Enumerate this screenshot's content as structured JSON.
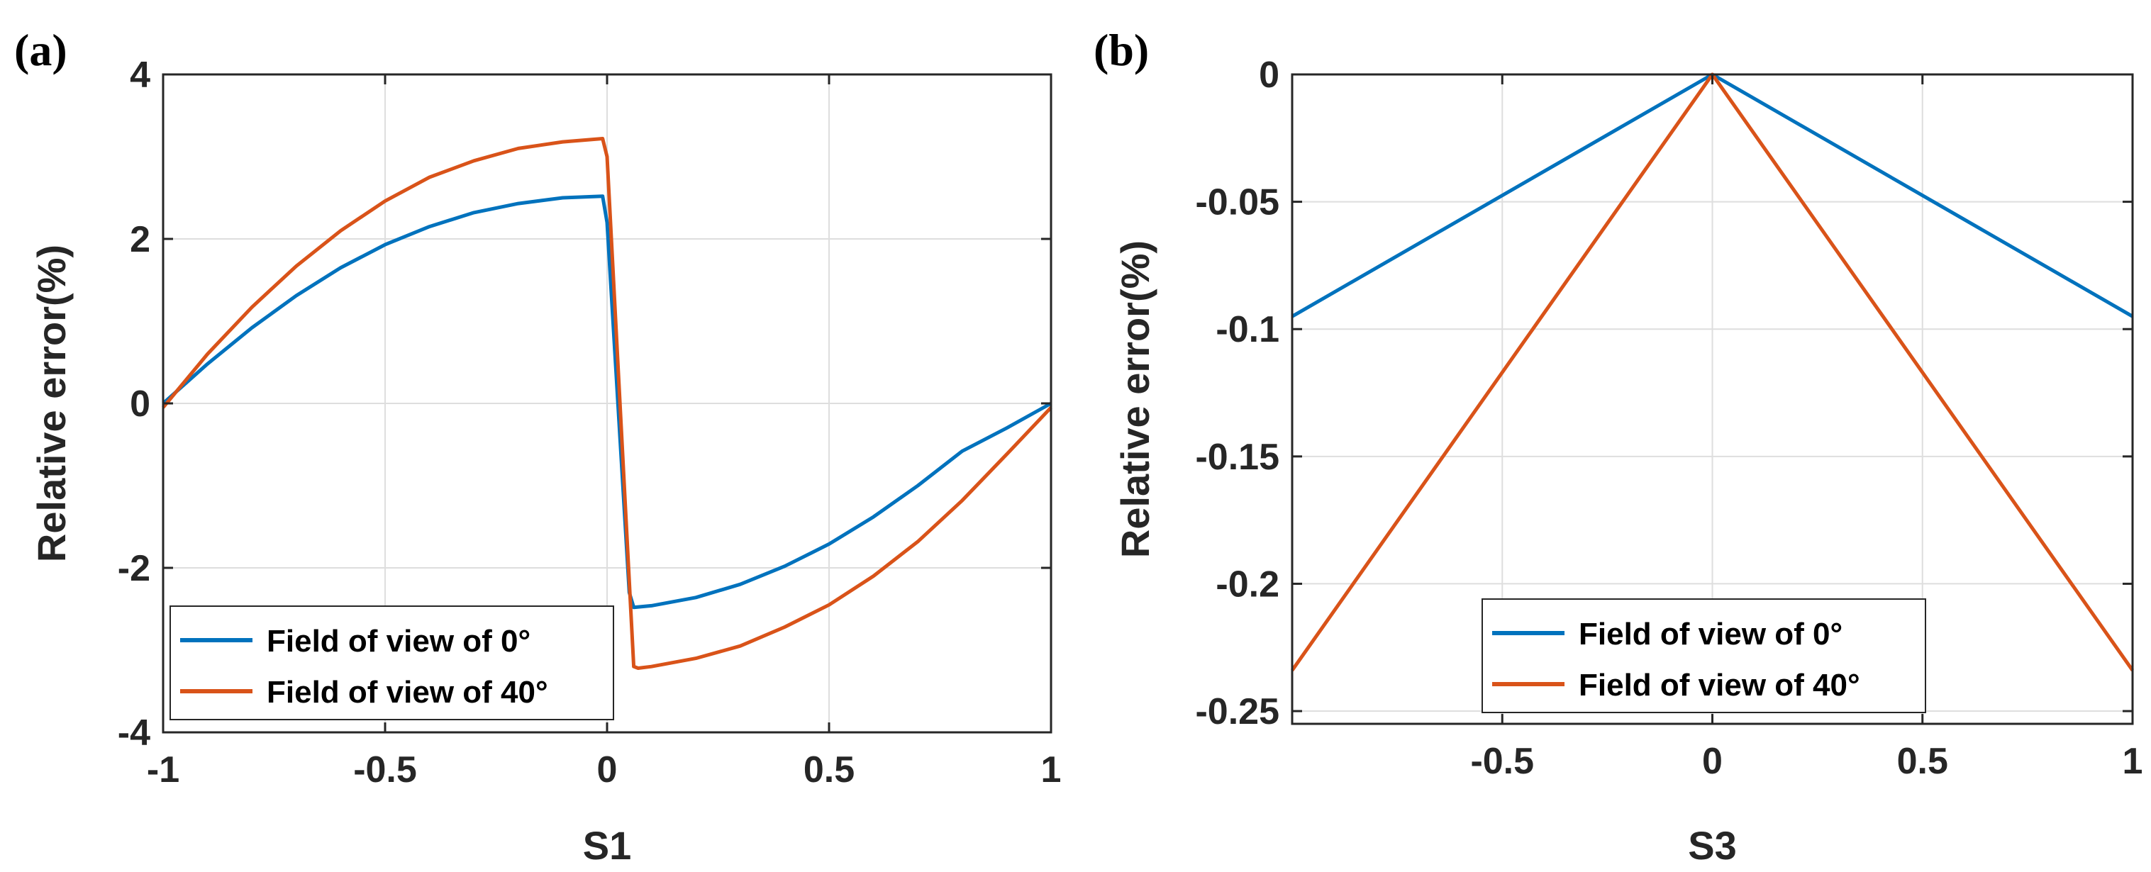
{
  "chart_data": [
    {
      "type": "line",
      "panel_label": "(a)",
      "xlabel": "S1",
      "ylabel": "Relative error(%)",
      "xlim": [
        -1,
        1
      ],
      "ylim": [
        -4,
        4
      ],
      "xticks": [
        -1,
        -0.5,
        0,
        0.5,
        1
      ],
      "xtick_labels": [
        "-1",
        "-0.5",
        "0",
        "0.5",
        "1"
      ],
      "yticks": [
        -4,
        -2,
        0,
        2,
        4
      ],
      "ytick_labels": [
        "-4",
        "-2",
        "0",
        "2",
        "4"
      ],
      "grid": true,
      "legend_position": "bottom-left",
      "series": [
        {
          "name": "Field of view of 0°",
          "color": "#0072BD",
          "x": [
            -1.0,
            -0.9,
            -0.8,
            -0.7,
            -0.6,
            -0.5,
            -0.4,
            -0.3,
            -0.2,
            -0.1,
            -0.01,
            0.0,
            0.05,
            0.06,
            0.1,
            0.2,
            0.3,
            0.4,
            0.5,
            0.6,
            0.7,
            0.8,
            0.9,
            1.0
          ],
          "y": [
            0.0,
            0.48,
            0.92,
            1.31,
            1.65,
            1.93,
            2.15,
            2.32,
            2.43,
            2.5,
            2.52,
            2.2,
            -2.3,
            -2.48,
            -2.46,
            -2.36,
            -2.2,
            -1.98,
            -1.71,
            -1.38,
            -1.0,
            -0.58,
            -0.3,
            0.0
          ]
        },
        {
          "name": "Field of view of 40°",
          "color": "#D95319",
          "x": [
            -1.0,
            -0.9,
            -0.8,
            -0.7,
            -0.6,
            -0.5,
            -0.4,
            -0.3,
            -0.2,
            -0.1,
            -0.01,
            0.0,
            0.06,
            0.07,
            0.1,
            0.2,
            0.3,
            0.4,
            0.5,
            0.6,
            0.7,
            0.8,
            0.9,
            1.0
          ],
          "y": [
            -0.05,
            0.6,
            1.17,
            1.67,
            2.1,
            2.46,
            2.75,
            2.95,
            3.1,
            3.18,
            3.22,
            3.0,
            -3.2,
            -3.22,
            -3.2,
            -3.1,
            -2.95,
            -2.72,
            -2.45,
            -2.1,
            -1.68,
            -1.18,
            -0.62,
            -0.05
          ]
        }
      ]
    },
    {
      "type": "line",
      "panel_label": "(b)",
      "xlabel": "S3",
      "ylabel": "Relative error(%)",
      "xlim": [
        -1,
        1
      ],
      "ylim": [
        -0.255,
        0
      ],
      "xticks": [
        -0.5,
        0,
        0.5,
        1
      ],
      "xtick_labels": [
        "-0.5",
        "0",
        "0.5",
        "1"
      ],
      "yticks": [
        0,
        -0.05,
        -0.1,
        -0.15,
        -0.2,
        -0.25
      ],
      "ytick_labels": [
        "0",
        "-0.05",
        "-0.1",
        "-0.15",
        "-0.2",
        "-0.25"
      ],
      "grid": true,
      "legend_position": "bottom-center",
      "series": [
        {
          "name": "Field of view of 0°",
          "color": "#0072BD",
          "x": [
            -1,
            0,
            1
          ],
          "y": [
            -0.095,
            0,
            -0.095
          ]
        },
        {
          "name": "Field of view of 40°",
          "color": "#D95319",
          "x": [
            -1,
            0,
            1
          ],
          "y": [
            -0.234,
            0,
            -0.234
          ]
        }
      ]
    }
  ]
}
